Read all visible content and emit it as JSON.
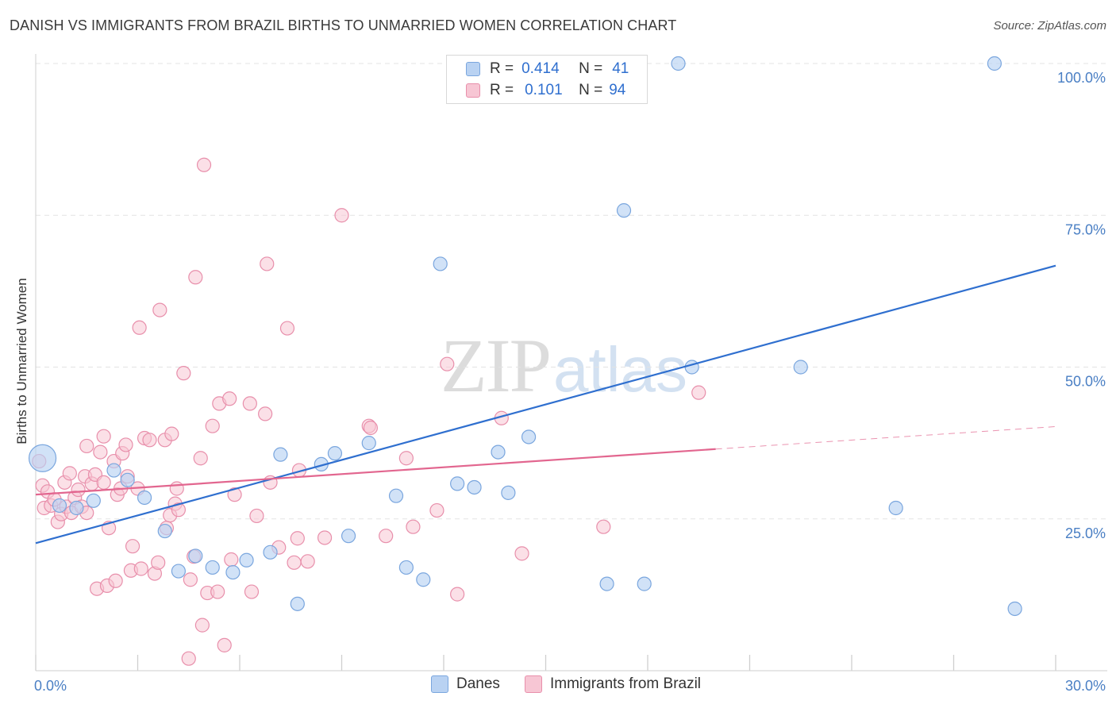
{
  "title": "DANISH VS IMMIGRANTS FROM BRAZIL BIRTHS TO UNMARRIED WOMEN CORRELATION CHART",
  "source": "Source: ZipAtlas.com",
  "watermark": {
    "part1": "ZIP",
    "part2": "atlas"
  },
  "legend": {
    "rows": [
      {
        "r_label": "R =",
        "r_value": "0.414",
        "n_label": "N =",
        "n_value": "41"
      },
      {
        "r_label": "R =",
        "r_value": "0.101",
        "n_label": "N =",
        "n_value": "94"
      }
    ]
  },
  "bottom_legend": {
    "danes": "Danes",
    "brazil": "Immigrants from Brazil"
  },
  "colors": {
    "danes_fill": "#b9d2f2",
    "danes_stroke": "#7aa6de",
    "danes_line": "#2f6fcf",
    "brazil_fill": "#f7c6d4",
    "brazil_stroke": "#e88fab",
    "brazil_line": "#e2668f",
    "axis_label": "#4a7fc4",
    "grid": "#e3e3e3"
  },
  "chart_data": {
    "type": "scatter",
    "title": "DANISH VS IMMIGRANTS FROM BRAZIL BIRTHS TO UNMARRIED WOMEN CORRELATION CHART",
    "xlabel": "",
    "ylabel": "Births to Unmarried Women",
    "xlim": [
      0,
      30
    ],
    "ylim": [
      0,
      100
    ],
    "x_tick_labels": [
      {
        "value": 0,
        "label": "0.0%"
      },
      {
        "value": 30,
        "label": "30.0%"
      }
    ],
    "y_tick_labels": [
      {
        "value": 25,
        "label": "25.0%"
      },
      {
        "value": 50,
        "label": "50.0%"
      },
      {
        "value": 75,
        "label": "75.0%"
      },
      {
        "value": 100,
        "label": "100.0%"
      }
    ],
    "grid": true,
    "legend_position": "top-center",
    "series": [
      {
        "name": "Danes",
        "r": 0.414,
        "n": 41,
        "trend": {
          "x": [
            0,
            30
          ],
          "y": [
            21,
            66.7
          ]
        },
        "points": [
          {
            "x": 0.2,
            "y": 35.0,
            "big": true
          },
          {
            "x": 0.7,
            "y": 27.2
          },
          {
            "x": 1.2,
            "y": 26.8
          },
          {
            "x": 1.7,
            "y": 28.0
          },
          {
            "x": 2.3,
            "y": 33.0
          },
          {
            "x": 2.7,
            "y": 31.4
          },
          {
            "x": 3.2,
            "y": 28.5
          },
          {
            "x": 3.8,
            "y": 23.0
          },
          {
            "x": 4.2,
            "y": 16.4
          },
          {
            "x": 4.7,
            "y": 18.9
          },
          {
            "x": 5.2,
            "y": 17.0
          },
          {
            "x": 5.8,
            "y": 16.2
          },
          {
            "x": 6.2,
            "y": 18.2
          },
          {
            "x": 6.9,
            "y": 19.5
          },
          {
            "x": 7.2,
            "y": 35.6
          },
          {
            "x": 7.7,
            "y": 11.0
          },
          {
            "x": 8.4,
            "y": 34.0
          },
          {
            "x": 8.8,
            "y": 35.8
          },
          {
            "x": 9.2,
            "y": 22.2
          },
          {
            "x": 9.8,
            "y": 37.5
          },
          {
            "x": 10.6,
            "y": 28.8
          },
          {
            "x": 10.9,
            "y": 17.0
          },
          {
            "x": 11.4,
            "y": 15.0
          },
          {
            "x": 11.9,
            "y": 67.0
          },
          {
            "x": 12.4,
            "y": 30.8
          },
          {
            "x": 12.9,
            "y": 30.2
          },
          {
            "x": 13.6,
            "y": 36.0
          },
          {
            "x": 13.9,
            "y": 29.3
          },
          {
            "x": 14.5,
            "y": 38.5
          },
          {
            "x": 14.8,
            "y": 100.0
          },
          {
            "x": 15.5,
            "y": 100.0
          },
          {
            "x": 16.8,
            "y": 14.3
          },
          {
            "x": 17.3,
            "y": 75.8
          },
          {
            "x": 17.9,
            "y": 14.3
          },
          {
            "x": 18.9,
            "y": 100.0
          },
          {
            "x": 19.3,
            "y": 50.0
          },
          {
            "x": 22.5,
            "y": 50.0
          },
          {
            "x": 25.3,
            "y": 26.8
          },
          {
            "x": 28.2,
            "y": 100.0
          },
          {
            "x": 28.8,
            "y": 10.2
          }
        ]
      },
      {
        "name": "Immigrants from Brazil",
        "r": 0.101,
        "n": 94,
        "trend": {
          "x": [
            0,
            20
          ],
          "y": [
            29,
            36.5
          ]
        },
        "trend_extension": {
          "x": [
            20,
            30
          ],
          "y": [
            36.5,
            40.2
          ]
        },
        "points": [
          {
            "x": 0.1,
            "y": 34.5
          },
          {
            "x": 0.2,
            "y": 30.5
          },
          {
            "x": 0.25,
            "y": 26.8
          },
          {
            "x": 0.35,
            "y": 29.5
          },
          {
            "x": 0.45,
            "y": 27.2
          },
          {
            "x": 0.55,
            "y": 28.2
          },
          {
            "x": 0.65,
            "y": 24.5
          },
          {
            "x": 0.75,
            "y": 25.8
          },
          {
            "x": 0.85,
            "y": 31.0
          },
          {
            "x": 0.9,
            "y": 27.0
          },
          {
            "x": 1.0,
            "y": 32.5
          },
          {
            "x": 1.05,
            "y": 26.0
          },
          {
            "x": 1.15,
            "y": 28.5
          },
          {
            "x": 1.25,
            "y": 29.8
          },
          {
            "x": 1.35,
            "y": 27.0
          },
          {
            "x": 1.45,
            "y": 32.0
          },
          {
            "x": 1.5,
            "y": 26.0
          },
          {
            "x": 1.5,
            "y": 37.0
          },
          {
            "x": 1.65,
            "y": 30.8
          },
          {
            "x": 1.75,
            "y": 32.3
          },
          {
            "x": 1.8,
            "y": 13.5
          },
          {
            "x": 1.9,
            "y": 36.0
          },
          {
            "x": 2.0,
            "y": 31.0
          },
          {
            "x": 2.0,
            "y": 38.6
          },
          {
            "x": 2.1,
            "y": 14.0
          },
          {
            "x": 2.15,
            "y": 23.5
          },
          {
            "x": 2.3,
            "y": 34.5
          },
          {
            "x": 2.35,
            "y": 14.8
          },
          {
            "x": 2.4,
            "y": 29.0
          },
          {
            "x": 2.5,
            "y": 30.0
          },
          {
            "x": 2.55,
            "y": 35.8
          },
          {
            "x": 2.65,
            "y": 37.2
          },
          {
            "x": 2.7,
            "y": 32.0
          },
          {
            "x": 2.8,
            "y": 16.5
          },
          {
            "x": 2.85,
            "y": 20.5
          },
          {
            "x": 3.0,
            "y": 30.0
          },
          {
            "x": 3.05,
            "y": 56.5
          },
          {
            "x": 3.1,
            "y": 16.8
          },
          {
            "x": 3.2,
            "y": 38.3
          },
          {
            "x": 3.35,
            "y": 38.0
          },
          {
            "x": 3.5,
            "y": 16.0
          },
          {
            "x": 3.6,
            "y": 17.8
          },
          {
            "x": 3.65,
            "y": 59.4
          },
          {
            "x": 3.8,
            "y": 38.0
          },
          {
            "x": 3.85,
            "y": 23.5
          },
          {
            "x": 3.95,
            "y": 25.6
          },
          {
            "x": 4.0,
            "y": 39.0
          },
          {
            "x": 4.1,
            "y": 27.5
          },
          {
            "x": 4.15,
            "y": 30.0
          },
          {
            "x": 4.2,
            "y": 26.5
          },
          {
            "x": 4.35,
            "y": 49.0
          },
          {
            "x": 4.5,
            "y": 2.0
          },
          {
            "x": 4.55,
            "y": 15.0
          },
          {
            "x": 4.65,
            "y": 18.8
          },
          {
            "x": 4.7,
            "y": 64.8
          },
          {
            "x": 4.85,
            "y": 35.0
          },
          {
            "x": 4.9,
            "y": 7.5
          },
          {
            "x": 4.95,
            "y": 83.3
          },
          {
            "x": 5.05,
            "y": 12.8
          },
          {
            "x": 5.2,
            "y": 40.3
          },
          {
            "x": 5.35,
            "y": 13.0
          },
          {
            "x": 5.4,
            "y": 44.0
          },
          {
            "x": 5.55,
            "y": 4.2
          },
          {
            "x": 5.7,
            "y": 44.8
          },
          {
            "x": 5.75,
            "y": 18.3
          },
          {
            "x": 5.85,
            "y": 29.0
          },
          {
            "x": 6.3,
            "y": 44.0
          },
          {
            "x": 6.35,
            "y": 13.0
          },
          {
            "x": 6.5,
            "y": 25.5
          },
          {
            "x": 6.75,
            "y": 42.3
          },
          {
            "x": 6.8,
            "y": 67.0
          },
          {
            "x": 6.9,
            "y": 31.0
          },
          {
            "x": 7.15,
            "y": 20.3
          },
          {
            "x": 7.4,
            "y": 56.4
          },
          {
            "x": 7.6,
            "y": 17.8
          },
          {
            "x": 7.7,
            "y": 21.8
          },
          {
            "x": 7.75,
            "y": 33.0
          },
          {
            "x": 8.0,
            "y": 18.0
          },
          {
            "x": 8.5,
            "y": 21.9
          },
          {
            "x": 9.0,
            "y": 75.0
          },
          {
            "x": 9.8,
            "y": 40.3
          },
          {
            "x": 9.85,
            "y": 40.0
          },
          {
            "x": 10.3,
            "y": 22.2
          },
          {
            "x": 10.9,
            "y": 35.0
          },
          {
            "x": 11.1,
            "y": 23.7
          },
          {
            "x": 11.8,
            "y": 26.4
          },
          {
            "x": 12.1,
            "y": 50.5
          },
          {
            "x": 12.4,
            "y": 12.6
          },
          {
            "x": 13.7,
            "y": 41.6
          },
          {
            "x": 14.3,
            "y": 19.3
          },
          {
            "x": 16.7,
            "y": 23.7
          },
          {
            "x": 19.5,
            "y": 45.8
          }
        ]
      }
    ]
  }
}
